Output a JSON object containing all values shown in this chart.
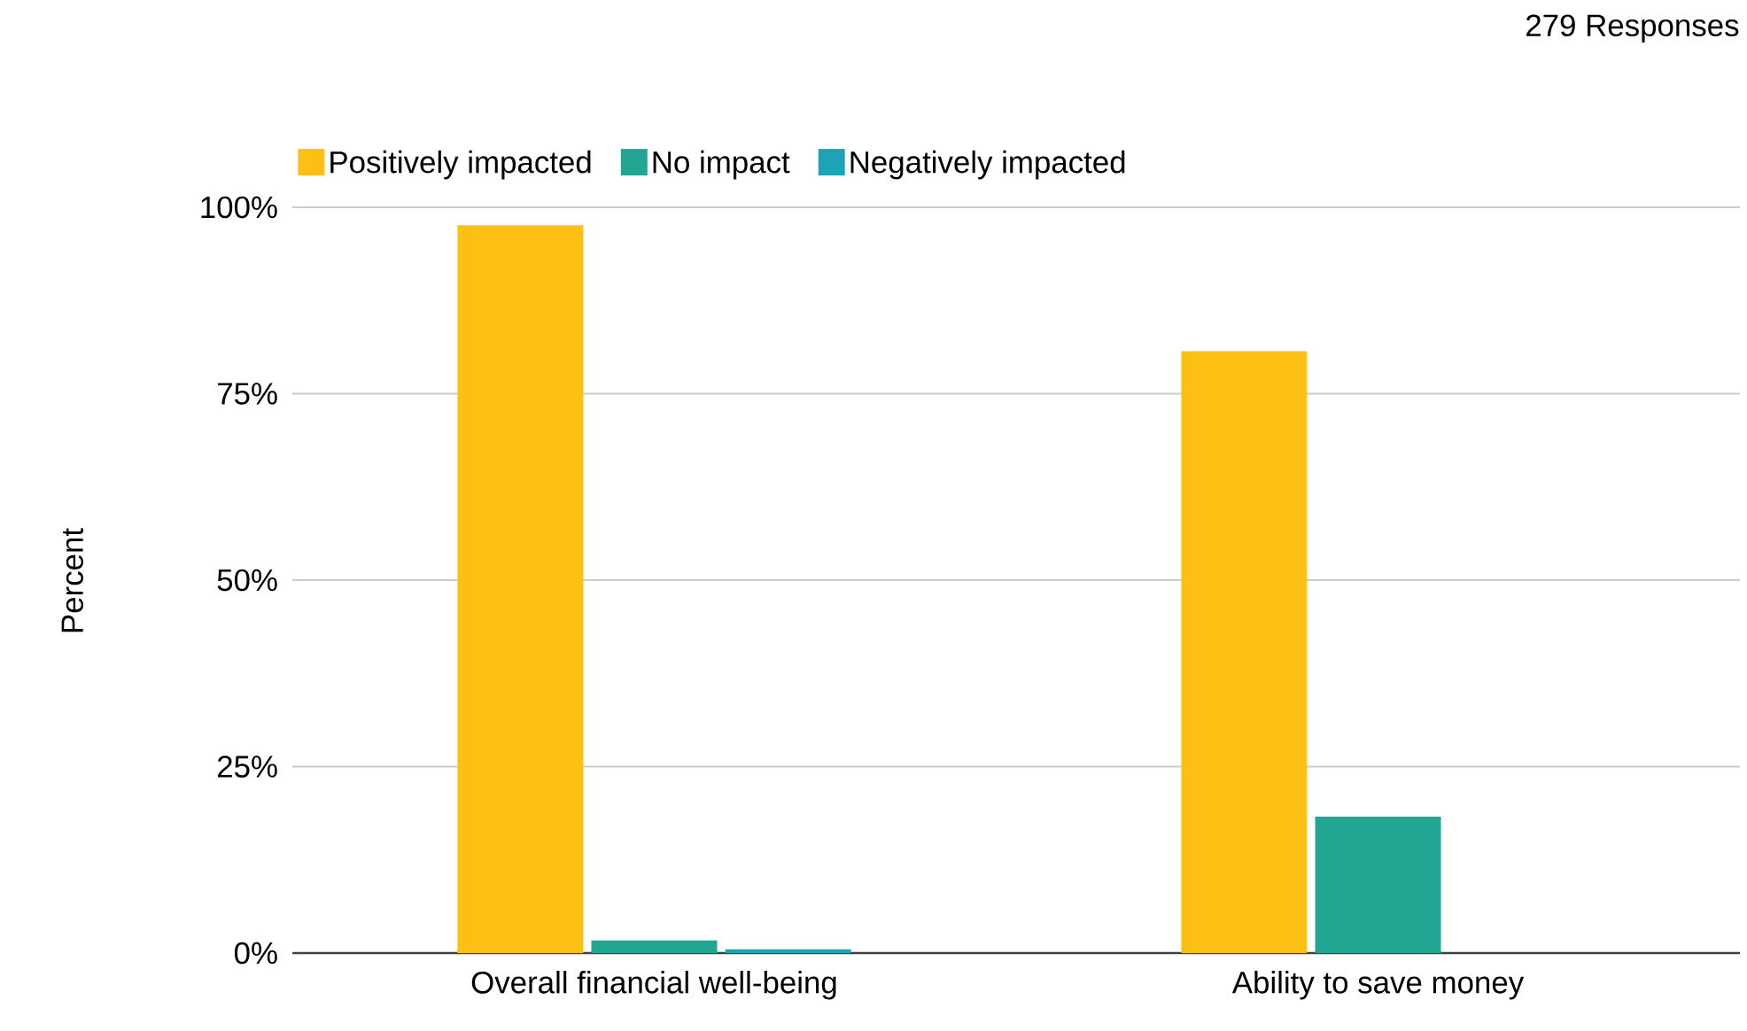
{
  "chart_data": {
    "type": "bar",
    "ylabel": "Percent",
    "categories": [
      "Overall financial well-being",
      "Ability to save money"
    ],
    "series": [
      {
        "name": "Positively impacted",
        "color": "#fcc015",
        "values": [
          97.6,
          80.7
        ]
      },
      {
        "name": "No impact",
        "color": "#23a594",
        "values": [
          1.7,
          18.3
        ]
      },
      {
        "name": "Negatively impacted",
        "color": "#1da3b8",
        "values": [
          0.5,
          0
        ]
      }
    ],
    "ylim": [
      0,
      100
    ],
    "yticks": [
      {
        "value": 0,
        "label": "0%"
      },
      {
        "value": 25,
        "label": "25%"
      },
      {
        "value": 50,
        "label": "50%"
      },
      {
        "value": 75,
        "label": "75%"
      },
      {
        "value": 100,
        "label": "100%"
      }
    ],
    "grid": "y",
    "legend": "top left",
    "annotations": [
      "279 Responses"
    ]
  }
}
